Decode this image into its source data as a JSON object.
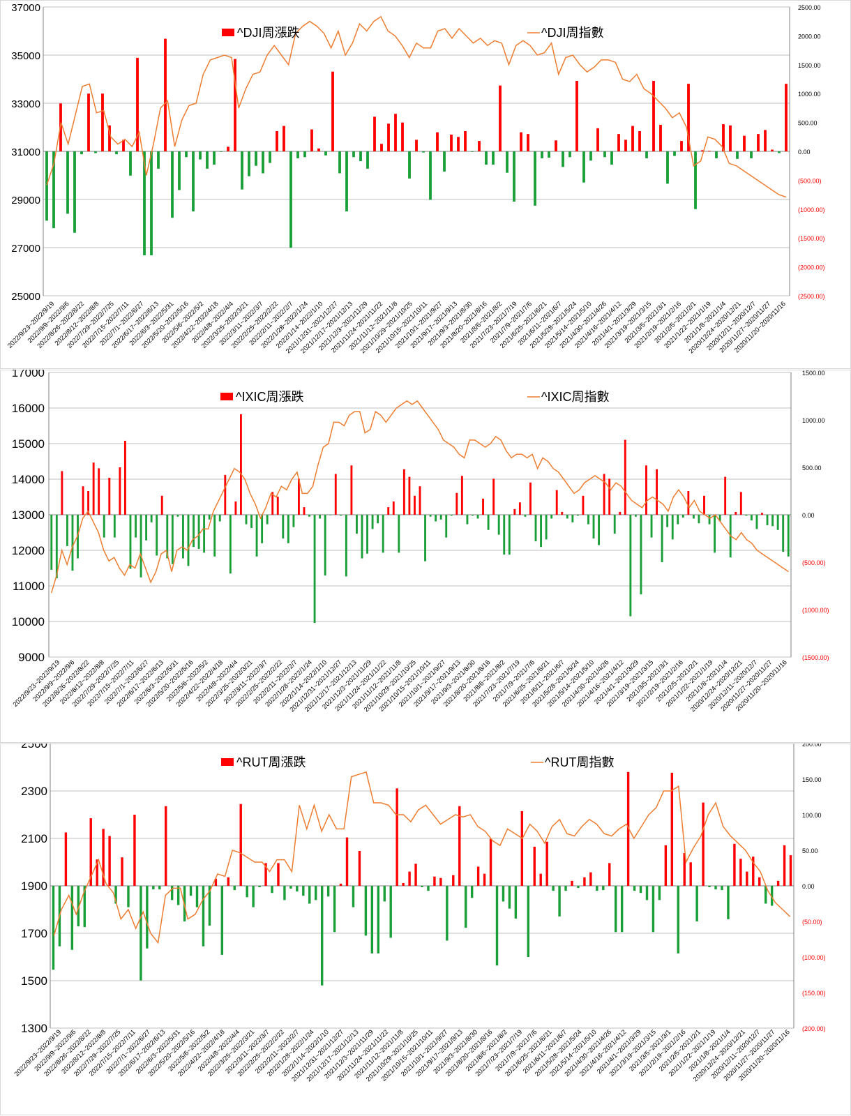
{
  "colors": {
    "up": "#ff0000",
    "down": "#1a9e38",
    "line": "#ed7d31",
    "right_axis_neg": "#ff0000",
    "grid": "#bfbfbf",
    "axis": "#808080"
  },
  "week_labels": [
    "2022/9/23~2022/9/19",
    "2022/9/9~2022/9/6",
    "2022/8/26~2022/8/22",
    "2022/8/12~2022/8/8",
    "2022/7/29~2022/7/25",
    "2022/7/15~2022/7/11",
    "2022/7/1~2022/6/27",
    "2022/6/17~2022/6/13",
    "2022/6/3~2022/5/31",
    "2022/5/20~2022/5/16",
    "2022/5/6~2022/5/2",
    "2022/4/22~2022/4/18",
    "2022/4/8~2022/4/4",
    "2022/3/25~2022/3/21",
    "2022/3/11~2022/3/7",
    "2022/2/25~2022/2/22",
    "2022/2/11~2022/2/7",
    "2022/1/28~2022/1/24",
    "2022/1/14~2022/1/10",
    "2021/12/31~2021/12/27",
    "2021/12/17~2021/12/13",
    "2021/12/3~2021/11/29",
    "2021/11/24~2021/11/22",
    "2021/11/12~2021/11/8",
    "2021/10/29~2021/10/25",
    "2021/10/15~2021/10/11",
    "2021/10/1~2021/9/27",
    "2021/9/17~2021/9/13",
    "2021/9/3~2021/8/30",
    "2021/8/20~2021/8/16",
    "2021/8/6~2021/8/2",
    "2021/7/23~2021/7/19",
    "2021/7/9~2021/7/6",
    "2021/6/25~2021/6/21",
    "2021/6/11~2021/6/7",
    "2021/5/28~2021/5/24",
    "2021/5/14~2021/5/10",
    "2021/4/30~2021/4/26",
    "2021/4/16~2021/4/12",
    "2021/4/1~2021/3/29",
    "2021/3/19~2021/3/15",
    "2021/3/5~2021/3/1",
    "2021/2/19~2021/2/16",
    "2021/2/5~2021/2/1",
    "2021/1/22~2021/1/19",
    "2021/1/8~2021/1/4",
    "2020/12/24~2020/12/21",
    "2020/12/11~2020/12/7",
    "2020/11/27~2020/11/27",
    "2020/11/20~2020/11/16"
  ],
  "chart_data": [
    {
      "type": "bar+line",
      "bar_series_name": "^DJI周漲跌",
      "line_series_name": "^DJI周指數",
      "left_axis": {
        "min": 25000,
        "max": 37000,
        "step": 2000,
        "ticks": [
          "25000",
          "27000",
          "29000",
          "31000",
          "33000",
          "35000",
          "37000"
        ]
      },
      "right_axis": {
        "min": -2500,
        "max": 2500,
        "step": 500,
        "ticks": [
          "(2500.00)",
          "(2000.00)",
          "(1500.00)",
          "(1000.00)",
          "(500.00)",
          "0.00",
          "500.00",
          "1000.00",
          "1500.00",
          "2000.00",
          "2500.00"
        ]
      },
      "changes": [
        -1200,
        -1330,
        830,
        -1080,
        -1410,
        -50,
        1000,
        -30,
        1000,
        450,
        -50,
        200,
        -420,
        1620,
        -1800,
        -1800,
        -300,
        1950,
        -1150,
        -670,
        -100,
        -1040,
        -140,
        -300,
        -230,
        -10,
        80,
        1600,
        -660,
        -430,
        -250,
        -380,
        -200,
        350,
        440,
        -1670,
        -120,
        -100,
        380,
        50,
        -70,
        1380,
        -380,
        -1040,
        -100,
        -170,
        -300,
        600,
        130,
        480,
        650,
        500,
        -470,
        200,
        -20,
        -840,
        330,
        -350,
        290,
        250,
        350,
        -10,
        180,
        -230,
        -230,
        1140,
        -370,
        -870,
        330,
        300,
        -940,
        -120,
        -110,
        190,
        -270,
        -100,
        1220,
        -540,
        -160,
        400,
        -100,
        -230,
        300,
        200,
        440,
        350,
        -120,
        1220,
        460,
        -560,
        -80,
        180,
        1170,
        -1000,
        20,
        10,
        -120,
        470,
        450,
        -130,
        270,
        -120,
        300,
        370,
        30,
        -30,
        1170
      ],
      "index": [
        29600,
        30500,
        32200,
        31300,
        32500,
        33700,
        33800,
        32600,
        32700,
        31600,
        31300,
        31500,
        31200,
        31800,
        30000,
        31300,
        32800,
        33100,
        31200,
        32300,
        32900,
        33000,
        34200,
        34800,
        34900,
        35000,
        34900,
        32800,
        33600,
        34200,
        34300,
        35000,
        35400,
        35000,
        34600,
        35900,
        36200,
        36400,
        36200,
        35900,
        35300,
        36000,
        35000,
        35500,
        36300,
        36000,
        36400,
        36600,
        36000,
        35800,
        35400,
        34900,
        35500,
        35300,
        35300,
        36000,
        36100,
        35700,
        36100,
        35800,
        35500,
        35700,
        35400,
        35600,
        35500,
        34600,
        35400,
        35600,
        35400,
        35000,
        35100,
        35500,
        34200,
        34900,
        35000,
        34600,
        34300,
        34500,
        34800,
        34800,
        34700,
        34000,
        33900,
        34200,
        33600,
        33400,
        33100,
        32800,
        32400,
        32600,
        32000,
        30400,
        30600,
        31600,
        31500,
        31200,
        30500,
        30400,
        30200,
        30000,
        29800,
        29600,
        29400,
        29200,
        29100
      ],
      "x_labels_key": "week_labels"
    },
    {
      "type": "bar+line",
      "bar_series_name": "^IXIC周漲跌",
      "line_series_name": "^IXIC周指數",
      "left_axis": {
        "min": 9000,
        "max": 17000,
        "step": 1000,
        "ticks": [
          "9000",
          "10000",
          "11000",
          "12000",
          "13000",
          "14000",
          "15000",
          "16000",
          "17000"
        ]
      },
      "right_axis": {
        "min": -1500,
        "max": 1500,
        "step": 500,
        "ticks": [
          "(1500.00)",
          "(1000.00)",
          "(500.00)",
          "0.00",
          "500.00",
          "1000.00",
          "1500.00"
        ]
      },
      "changes": [
        -580,
        -670,
        460,
        -330,
        -590,
        -460,
        300,
        250,
        550,
        490,
        -240,
        390,
        -240,
        500,
        780,
        -570,
        -240,
        -660,
        -270,
        -80,
        -430,
        200,
        -460,
        -520,
        -20,
        -460,
        -540,
        -340,
        -360,
        -400,
        -50,
        -440,
        -70,
        420,
        -620,
        140,
        1060,
        -100,
        -140,
        -440,
        -300,
        -100,
        240,
        190,
        -250,
        -300,
        -130,
        380,
        80,
        -20,
        -1140,
        -40,
        -640,
        -5,
        430,
        -10,
        -650,
        520,
        -200,
        -460,
        -410,
        -150,
        -90,
        -400,
        80,
        140,
        -400,
        480,
        400,
        200,
        300,
        -490,
        -20,
        -70,
        -50,
        -240,
        -10,
        230,
        410,
        -100,
        -10,
        -40,
        170,
        -160,
        380,
        -210,
        -420,
        -420,
        60,
        130,
        -20,
        340,
        -280,
        -340,
        -260,
        -40,
        260,
        30,
        -40,
        -80,
        -10,
        200,
        -100,
        -250,
        -320,
        430,
        380,
        -200,
        30,
        790,
        -1070,
        -20,
        -840,
        520,
        -240,
        480,
        -500,
        -130,
        -260,
        -100,
        -30,
        250,
        -40,
        -90,
        200,
        -100,
        -400,
        -70,
        400,
        -450,
        30,
        240,
        -10,
        -60,
        -150,
        20,
        -110,
        -120,
        -160,
        -390,
        -440
      ],
      "index": [
        10800,
        11300,
        12000,
        11600,
        12100,
        12400,
        12900,
        13100,
        12800,
        12500,
        12000,
        11700,
        11800,
        11500,
        11300,
        11600,
        11500,
        11900,
        11500,
        11100,
        11400,
        11900,
        12000,
        11400,
        12000,
        12100,
        12000,
        12300,
        12400,
        12600,
        12600,
        13100,
        13400,
        13700,
        14000,
        14300,
        14200,
        14000,
        13600,
        13300,
        12900,
        13200,
        13600,
        13500,
        13800,
        13700,
        14000,
        14200,
        13600,
        13600,
        13800,
        14400,
        14900,
        15000,
        15600,
        15600,
        15500,
        15800,
        15900,
        15900,
        15300,
        15400,
        15900,
        15800,
        15600,
        15800,
        16000,
        16100,
        16200,
        16100,
        16200,
        16000,
        15800,
        15600,
        15400,
        15100,
        15000,
        14900,
        14700,
        14600,
        15100,
        15100,
        15000,
        14900,
        15000,
        15200,
        15100,
        14800,
        14600,
        14700,
        14700,
        14600,
        14700,
        14300,
        14600,
        14500,
        14300,
        14200,
        14000,
        13800,
        13600,
        13700,
        13900,
        14000,
        14100,
        14000,
        13900,
        13700,
        13900,
        13800,
        13600,
        13400,
        13300,
        13200,
        13400,
        13500,
        13400,
        13300,
        13100,
        13500,
        13700,
        13500,
        13200,
        13400,
        13100,
        13000,
        12900,
        13000,
        12800,
        12600,
        12400,
        12300,
        12500,
        12300,
        12200,
        12000,
        11900,
        11800,
        11700,
        11600,
        11500,
        11400
      ],
      "x_labels_key": "week_labels"
    },
    {
      "type": "bar+line",
      "bar_series_name": "^RUT周漲跌",
      "line_series_name": "^RUT周指數",
      "left_axis": {
        "min": 1300,
        "max": 2500,
        "step": 200,
        "ticks": [
          "1300",
          "1500",
          "1700",
          "1900",
          "2100",
          "2300",
          "2500"
        ]
      },
      "right_axis": {
        "min": -200,
        "max": 200,
        "step": 50,
        "ticks": [
          "(200.00)",
          "(150.00)",
          "(100.00)",
          "(50.00)",
          "0.00",
          "50.00",
          "100.00",
          "150.00",
          "200.00"
        ]
      },
      "changes": [
        -118,
        -85,
        75,
        -90,
        -57,
        -58,
        95,
        37,
        80,
        70,
        -25,
        40,
        -30,
        100,
        -133,
        -88,
        -5,
        -5,
        112,
        -20,
        -27,
        -50,
        -14,
        -30,
        -85,
        -56,
        10,
        -97,
        12,
        -6,
        115,
        -16,
        -30,
        -2,
        32,
        -10,
        32,
        -20,
        -4,
        -8,
        -14,
        -25,
        -20,
        -140,
        -15,
        -65,
        3,
        68,
        -30,
        49,
        -70,
        -95,
        -95,
        -22,
        -73,
        137,
        4,
        20,
        31,
        -2,
        -7,
        13,
        11,
        -77,
        15,
        112,
        -59,
        -17,
        27,
        17,
        66,
        -112,
        -22,
        -32,
        -46,
        105,
        -100,
        55,
        17,
        62,
        -7,
        -43,
        -7,
        7,
        -3,
        12,
        19,
        -7,
        -6,
        32,
        -65,
        -65,
        160,
        -7,
        -10,
        -20,
        -65,
        -20,
        57,
        159,
        -95,
        46,
        33,
        -50,
        117,
        -2,
        -5,
        -6,
        -47,
        59,
        38,
        20,
        41,
        12,
        -25,
        -28,
        7,
        57,
        43
      ],
      "index": [
        1690,
        1800,
        1860,
        1780,
        1870,
        1940,
        2010,
        1910,
        1870,
        1760,
        1800,
        1720,
        1790,
        1700,
        1660,
        1860,
        1890,
        1890,
        1760,
        1780,
        1840,
        1880,
        1950,
        1940,
        2050,
        2040,
        2020,
        2000,
        2000,
        1960,
        2010,
        2010,
        1960,
        2240,
        2140,
        2240,
        2130,
        2200,
        2140,
        2140,
        2360,
        2370,
        2380,
        2250,
        2250,
        2240,
        2200,
        2200,
        2170,
        2220,
        2240,
        2200,
        2160,
        2180,
        2200,
        2190,
        2200,
        2150,
        2130,
        2090,
        2070,
        2140,
        2120,
        2100,
        2160,
        2130,
        2080,
        2150,
        2180,
        2120,
        2110,
        2150,
        2180,
        2160,
        2120,
        2110,
        2140,
        2160,
        2100,
        2150,
        2200,
        2230,
        2300,
        2300,
        2320,
        2000,
        2060,
        2110,
        2200,
        2250,
        2150,
        2110,
        2080,
        2050,
        2000,
        1960,
        1880,
        1830,
        1800,
        1770
      ],
      "x_labels_key": "week_labels"
    }
  ]
}
